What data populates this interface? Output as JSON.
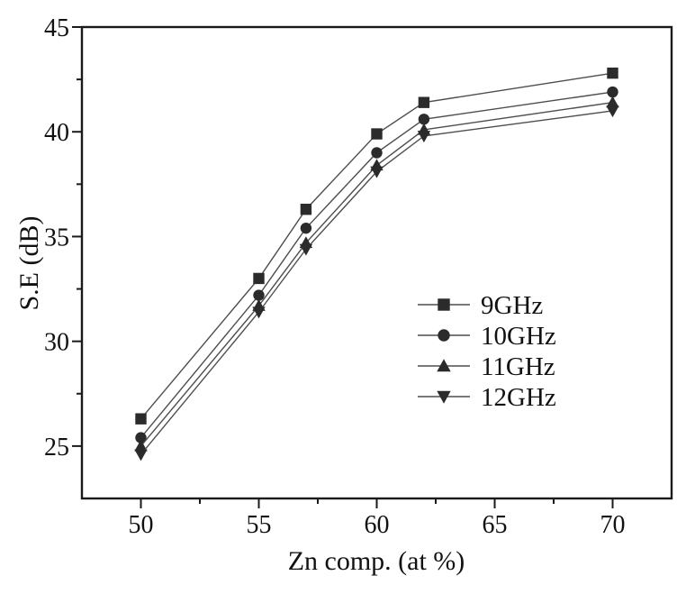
{
  "chart_data": {
    "type": "line",
    "title": "",
    "xlabel": "Zn comp. (at %)",
    "ylabel": "S.E (dB)",
    "x": [
      50,
      55,
      57,
      60,
      62,
      70
    ],
    "series": [
      {
        "name": "9GHz",
        "marker": "square",
        "values": [
          26.3,
          33.0,
          36.3,
          39.9,
          41.4,
          42.8
        ]
      },
      {
        "name": "10GHz",
        "marker": "circle",
        "values": [
          25.4,
          32.2,
          35.4,
          39.0,
          40.6,
          41.9
        ]
      },
      {
        "name": "11GHz",
        "marker": "triangle-up",
        "values": [
          25.0,
          31.7,
          34.7,
          38.4,
          40.1,
          41.4
        ]
      },
      {
        "name": "12GHz",
        "marker": "triangle-down",
        "values": [
          24.6,
          31.4,
          34.4,
          38.1,
          39.8,
          41.0
        ]
      }
    ],
    "xlim": [
      47.5,
      72.5
    ],
    "ylim": [
      22.5,
      45
    ],
    "x_major_ticks": [
      50,
      55,
      60,
      65,
      70
    ],
    "x_minor_ticks": [
      52.5,
      57.5,
      62.5,
      67.5
    ],
    "y_major_ticks": [
      25,
      30,
      35,
      40,
      45
    ],
    "y_minor_ticks": [
      27.5,
      32.5,
      37.5,
      42.5
    ],
    "grid": false,
    "frame": "full-box",
    "legend": {
      "position": "inside-center-right",
      "entries": [
        "9GHz",
        "10GHz",
        "11GHz",
        "12GHz"
      ]
    },
    "colors": {
      "line": "#4d4d4d",
      "marker": "#2b2b2b",
      "axis": "#1a1a1a",
      "text": "#111111",
      "background": "#ffffff"
    }
  }
}
